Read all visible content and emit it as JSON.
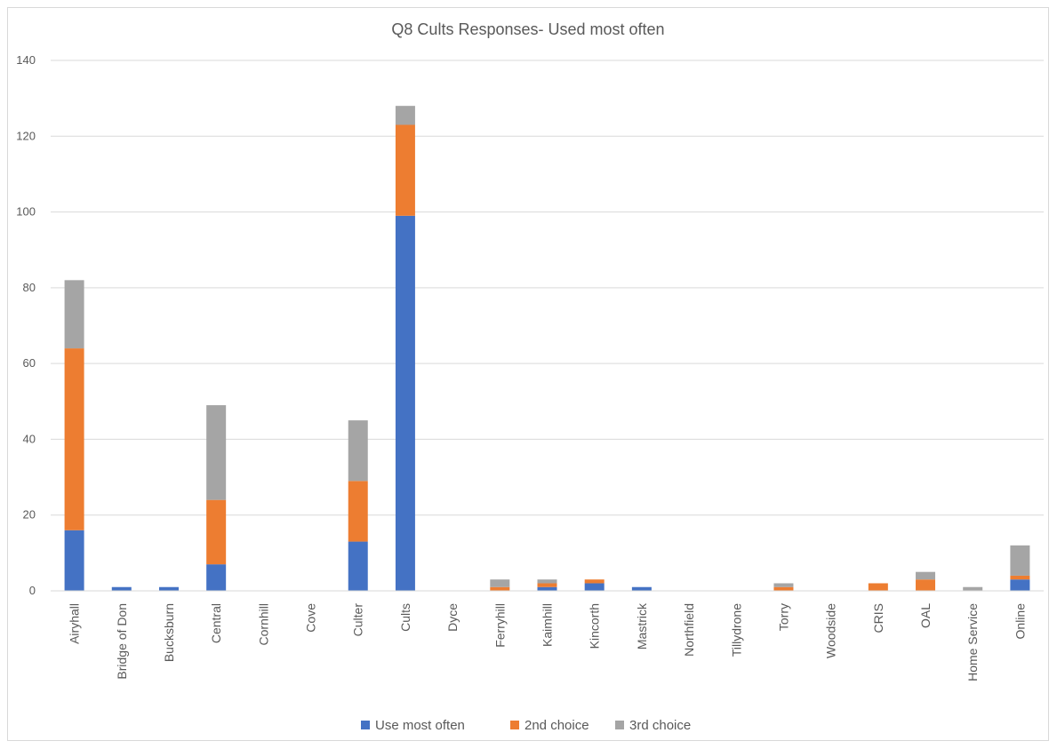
{
  "chart_data": {
    "type": "bar",
    "stacked": true,
    "title": "Q8 Cults Responses- Used most often",
    "xlabel": "",
    "ylabel": "",
    "ylim": [
      0,
      140
    ],
    "yticks": [
      0,
      20,
      40,
      60,
      80,
      100,
      120,
      140
    ],
    "grid": true,
    "legend_position": "bottom",
    "categories": [
      "Airyhall",
      "Bridge of Don",
      "Bucksburn",
      "Central",
      "Cornhill",
      "Cove",
      "Culter",
      "Cults",
      "Dyce",
      "Ferryhill",
      "Kaimhill",
      "Kincorth",
      "Mastrick",
      "Northfield",
      "Tillydrone",
      "Torry",
      "Woodside",
      "CRIS",
      "OAL",
      "Home Service",
      "Online"
    ],
    "series": [
      {
        "name": "Use most often",
        "color": "#4472c4",
        "values": [
          16,
          1,
          1,
          7,
          0,
          0,
          13,
          99,
          0,
          0,
          1,
          2,
          1,
          0,
          0,
          0,
          0,
          0,
          0,
          0,
          3
        ]
      },
      {
        "name": "2nd choice",
        "color": "#ed7d31",
        "values": [
          48,
          0,
          0,
          17,
          0,
          0,
          16,
          24,
          0,
          1,
          1,
          1,
          0,
          0,
          0,
          1,
          0,
          2,
          3,
          0,
          1
        ]
      },
      {
        "name": "3rd choice",
        "color": "#a5a5a5",
        "values": [
          18,
          0,
          0,
          25,
          0,
          0,
          16,
          5,
          0,
          2,
          1,
          0,
          0,
          0,
          0,
          1,
          0,
          0,
          2,
          1,
          8
        ]
      }
    ]
  }
}
